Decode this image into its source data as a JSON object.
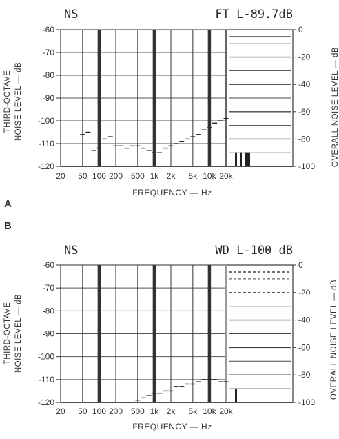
{
  "figure_labels": [
    "A",
    "B"
  ],
  "chart_data": [
    {
      "type": "line",
      "panel": "A",
      "corner_left": "NS",
      "corner_right": "FT L-89.7dB",
      "xlabel": "FREQUENCY — Hz",
      "ylabel_left": [
        "THIRD-OCTAVE",
        "NOISE LEVEL — dB"
      ],
      "ylabel_right": "OVERALL NOISE LEVEL — dB",
      "x_scale": "log",
      "x_ticks": [
        "20",
        "50",
        "100",
        "200",
        "500",
        "1k",
        "2k",
        "5k",
        "10k",
        "20k"
      ],
      "y_ticks_left": [
        "-60",
        "-70",
        "-80",
        "-90",
        "-100",
        "-110",
        "-120"
      ],
      "y_ticks_right": [
        "0",
        "-20",
        "-40",
        "-60",
        "-80",
        "-100"
      ],
      "ylim": [
        -120,
        -60
      ],
      "ylim_right": [
        -100,
        0
      ],
      "grid": true,
      "series": [
        {
          "x": [
            20,
            25,
            31.5,
            40,
            50,
            63,
            80,
            100,
            125,
            160,
            200,
            250,
            315,
            400,
            500,
            630,
            800,
            1000,
            1250,
            1600,
            2000,
            2500,
            3150,
            4000,
            5000,
            6300,
            8000,
            10000,
            12500,
            16000,
            20000
          ],
          "values": [
            -120,
            -120,
            -120,
            -120,
            -106,
            -105,
            -113,
            -112,
            -108,
            -107,
            -111,
            -111,
            -112,
            -111,
            -111,
            -112,
            -113,
            -114,
            -114,
            -112,
            -111,
            -110,
            -109,
            -108,
            -107,
            -106,
            -104,
            -103,
            -101,
            -100,
            -99
          ]
        }
      ],
      "overall_value": -89.7
    },
    {
      "type": "line",
      "panel": "B",
      "corner_left": "NS",
      "corner_right": "WD L-100 dB",
      "xlabel": "FREQUENCY — Hz",
      "ylabel_left": [
        "THIRD-OCTAVE",
        "NOISE LEVEL — dB"
      ],
      "ylabel_right": "OVERALL NOISE LEVEL — dB",
      "x_scale": "log",
      "x_ticks": [
        "20",
        "50",
        "100",
        "200",
        "500",
        "1k",
        "2k",
        "5k",
        "10k",
        "20k"
      ],
      "y_ticks_left": [
        "-60",
        "-70",
        "-80",
        "-90",
        "-100",
        "-110",
        "-120"
      ],
      "y_ticks_right": [
        "0",
        "-20",
        "-40",
        "-60",
        "-80",
        "-100"
      ],
      "ylim": [
        -120,
        -60
      ],
      "ylim_right": [
        -100,
        0
      ],
      "grid": true,
      "series": [
        {
          "x": [
            20,
            25,
            31.5,
            40,
            50,
            63,
            80,
            100,
            125,
            160,
            200,
            250,
            315,
            400,
            500,
            630,
            800,
            1000,
            1250,
            1600,
            2000,
            2500,
            3150,
            4000,
            5000,
            6300,
            8000,
            10000,
            12500,
            16000,
            20000
          ],
          "values": [
            -120,
            -120,
            -120,
            -120,
            -120,
            -120,
            -120,
            -120,
            -120,
            -120,
            -120,
            -120,
            -120,
            -120,
            -119,
            -118,
            -117,
            -116,
            -116,
            -115,
            -115,
            -113,
            -113,
            -112,
            -112,
            -111,
            -110,
            -110,
            -110,
            -111,
            -111
          ]
        }
      ],
      "overall_value": -100
    }
  ]
}
